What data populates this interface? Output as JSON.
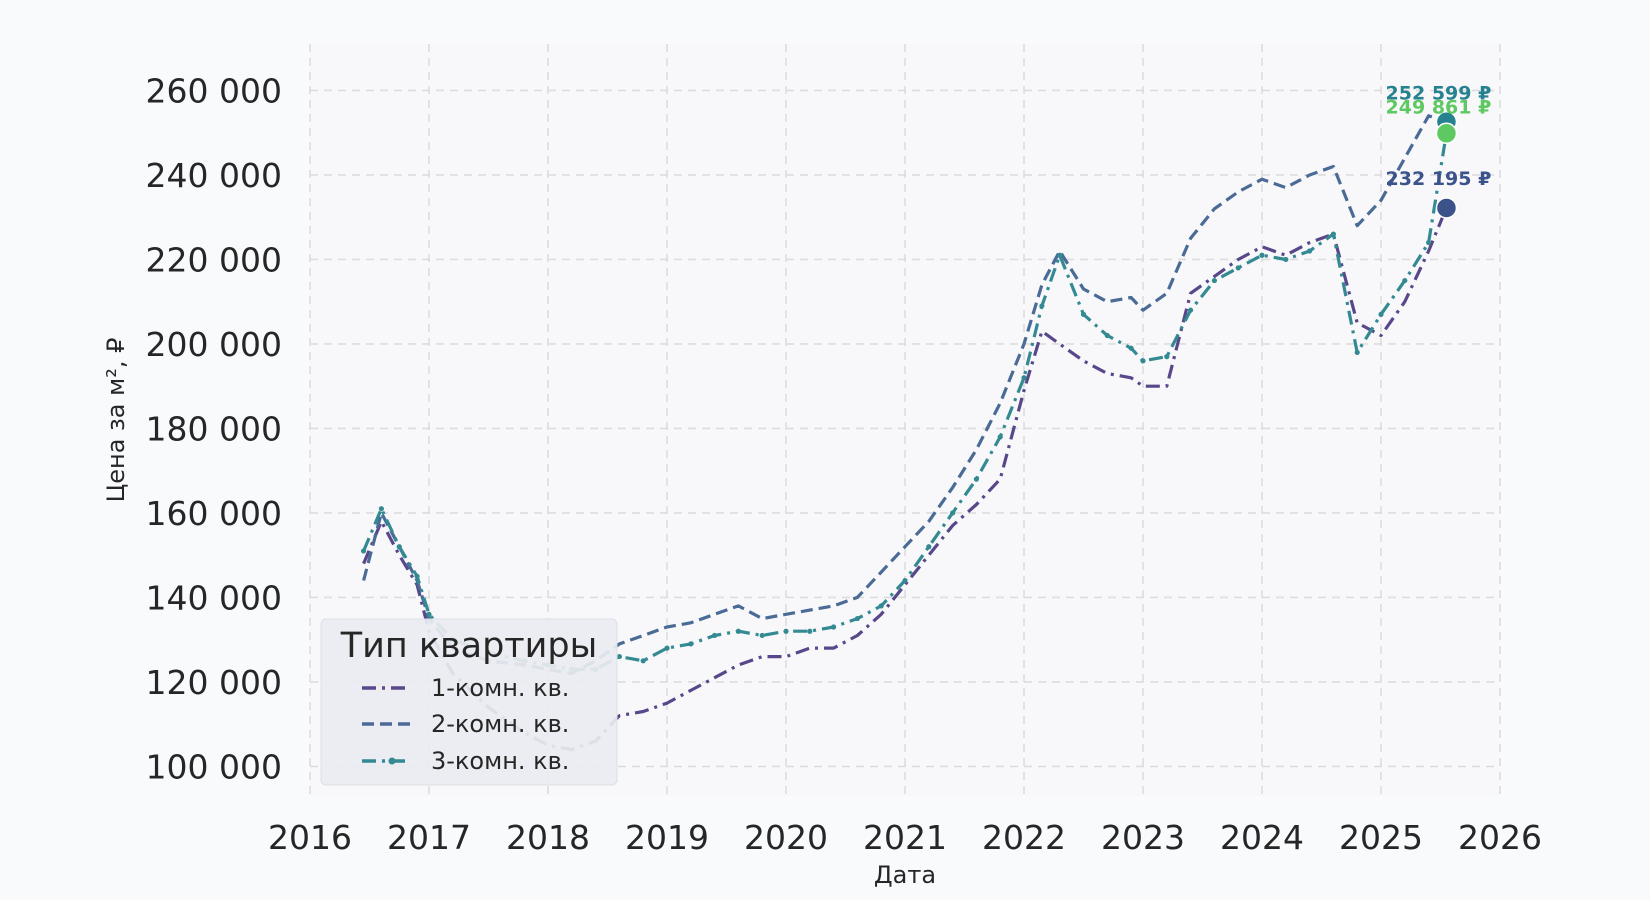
{
  "chart_data": {
    "type": "line",
    "title": "",
    "xlabel": "Дата",
    "ylabel": "Цена за м², ₽",
    "x_ticks": [
      "2016",
      "2017",
      "2018",
      "2019",
      "2020",
      "2021",
      "2022",
      "2023",
      "2024",
      "2025",
      "2026"
    ],
    "y_ticks": [
      "100 000",
      "120 000",
      "140 000",
      "160 000",
      "180 000",
      "200 000",
      "220 000",
      "240 000",
      "260 000"
    ],
    "xlim": [
      2016.0,
      2026.0
    ],
    "ylim": [
      93000,
      271000
    ],
    "grid": true,
    "legend": {
      "title": "Тип квартиры",
      "placement": "lower-left"
    },
    "series": [
      {
        "name": "1-комн. кв.",
        "color": "#58478a",
        "style": "dash-dot",
        "x": [
          2016.45,
          2016.6,
          2016.75,
          2016.9,
          2017.0,
          2017.2,
          2017.5,
          2017.8,
          2018.0,
          2018.2,
          2018.4,
          2018.6,
          2018.8,
          2019.0,
          2019.2,
          2019.4,
          2019.6,
          2019.8,
          2020.0,
          2020.2,
          2020.4,
          2020.6,
          2020.8,
          2021.0,
          2021.2,
          2021.4,
          2021.6,
          2021.8,
          2022.0,
          2022.15,
          2022.3,
          2022.5,
          2022.7,
          2022.9,
          2023.0,
          2023.2,
          2023.4,
          2023.6,
          2023.8,
          2024.0,
          2024.2,
          2024.4,
          2024.6,
          2024.8,
          2025.0,
          2025.2,
          2025.4,
          2025.55
        ],
        "y": [
          148000,
          158000,
          150000,
          143000,
          132000,
          122000,
          114000,
          108000,
          105000,
          104000,
          106000,
          112000,
          113000,
          115000,
          118000,
          121000,
          124000,
          126000,
          126000,
          128000,
          128000,
          131000,
          136000,
          143000,
          150000,
          157000,
          162000,
          168000,
          189000,
          203000,
          200000,
          196000,
          193000,
          192000,
          190000,
          190000,
          212000,
          216000,
          220000,
          223000,
          221000,
          224000,
          226000,
          205000,
          202000,
          210000,
          222000,
          232195
        ]
      },
      {
        "name": "2-комн. кв.",
        "color": "#4a6b96",
        "style": "dash",
        "x": [
          2016.45,
          2016.6,
          2016.75,
          2016.9,
          2017.0,
          2017.2,
          2017.5,
          2017.8,
          2018.0,
          2018.2,
          2018.4,
          2018.6,
          2018.8,
          2019.0,
          2019.2,
          2019.4,
          2019.6,
          2019.8,
          2020.0,
          2020.2,
          2020.4,
          2020.6,
          2020.8,
          2021.0,
          2021.2,
          2021.4,
          2021.6,
          2021.8,
          2022.0,
          2022.15,
          2022.3,
          2022.5,
          2022.7,
          2022.9,
          2023.0,
          2023.2,
          2023.4,
          2023.6,
          2023.8,
          2024.0,
          2024.2,
          2024.4,
          2024.6,
          2024.8,
          2025.0,
          2025.2,
          2025.4,
          2025.55
        ],
        "y": [
          144000,
          160000,
          152000,
          144000,
          135000,
          128000,
          125000,
          124000,
          123000,
          122000,
          125000,
          129000,
          131000,
          133000,
          134000,
          136000,
          138000,
          135000,
          136000,
          137000,
          138000,
          140000,
          146000,
          152000,
          158000,
          166000,
          175000,
          186000,
          200000,
          214000,
          222000,
          213000,
          210000,
          211000,
          208000,
          212000,
          225000,
          232000,
          236000,
          239000,
          237000,
          240000,
          242000,
          228000,
          234000,
          244000,
          254000,
          252599
        ]
      },
      {
        "name": "3-комн. кв.",
        "color": "#348a92",
        "style": "dash-dot-marker",
        "x": [
          2016.45,
          2016.6,
          2016.75,
          2016.9,
          2017.0,
          2017.2,
          2017.5,
          2017.8,
          2018.0,
          2018.2,
          2018.4,
          2018.6,
          2018.8,
          2019.0,
          2019.2,
          2019.4,
          2019.6,
          2019.8,
          2020.0,
          2020.2,
          2020.4,
          2020.6,
          2020.8,
          2021.0,
          2021.2,
          2021.4,
          2021.6,
          2021.8,
          2022.0,
          2022.15,
          2022.3,
          2022.5,
          2022.7,
          2022.9,
          2023.0,
          2023.2,
          2023.4,
          2023.6,
          2023.8,
          2024.0,
          2024.2,
          2024.4,
          2024.6,
          2024.8,
          2025.0,
          2025.2,
          2025.4,
          2025.55
        ],
        "y": [
          151000,
          161000,
          152000,
          145000,
          136000,
          130000,
          127000,
          125000,
          124000,
          123000,
          123000,
          126000,
          125000,
          128000,
          129000,
          131000,
          132000,
          131000,
          132000,
          132000,
          133000,
          135000,
          138000,
          144000,
          152000,
          160000,
          168000,
          178000,
          192000,
          209000,
          221000,
          207000,
          202000,
          199000,
          196000,
          197000,
          208000,
          215000,
          218000,
          221000,
          220000,
          222000,
          226000,
          198000,
          207000,
          215000,
          224000,
          249861
        ]
      }
    ],
    "end_points": [
      {
        "label": "252 599 ₽",
        "value": 252599,
        "color": "#26828e"
      },
      {
        "label": "249 861 ₽",
        "value": 249861,
        "color": "#5ec962"
      },
      {
        "label": "232 195 ₽",
        "value": 232195,
        "color": "#3b528b"
      }
    ]
  }
}
